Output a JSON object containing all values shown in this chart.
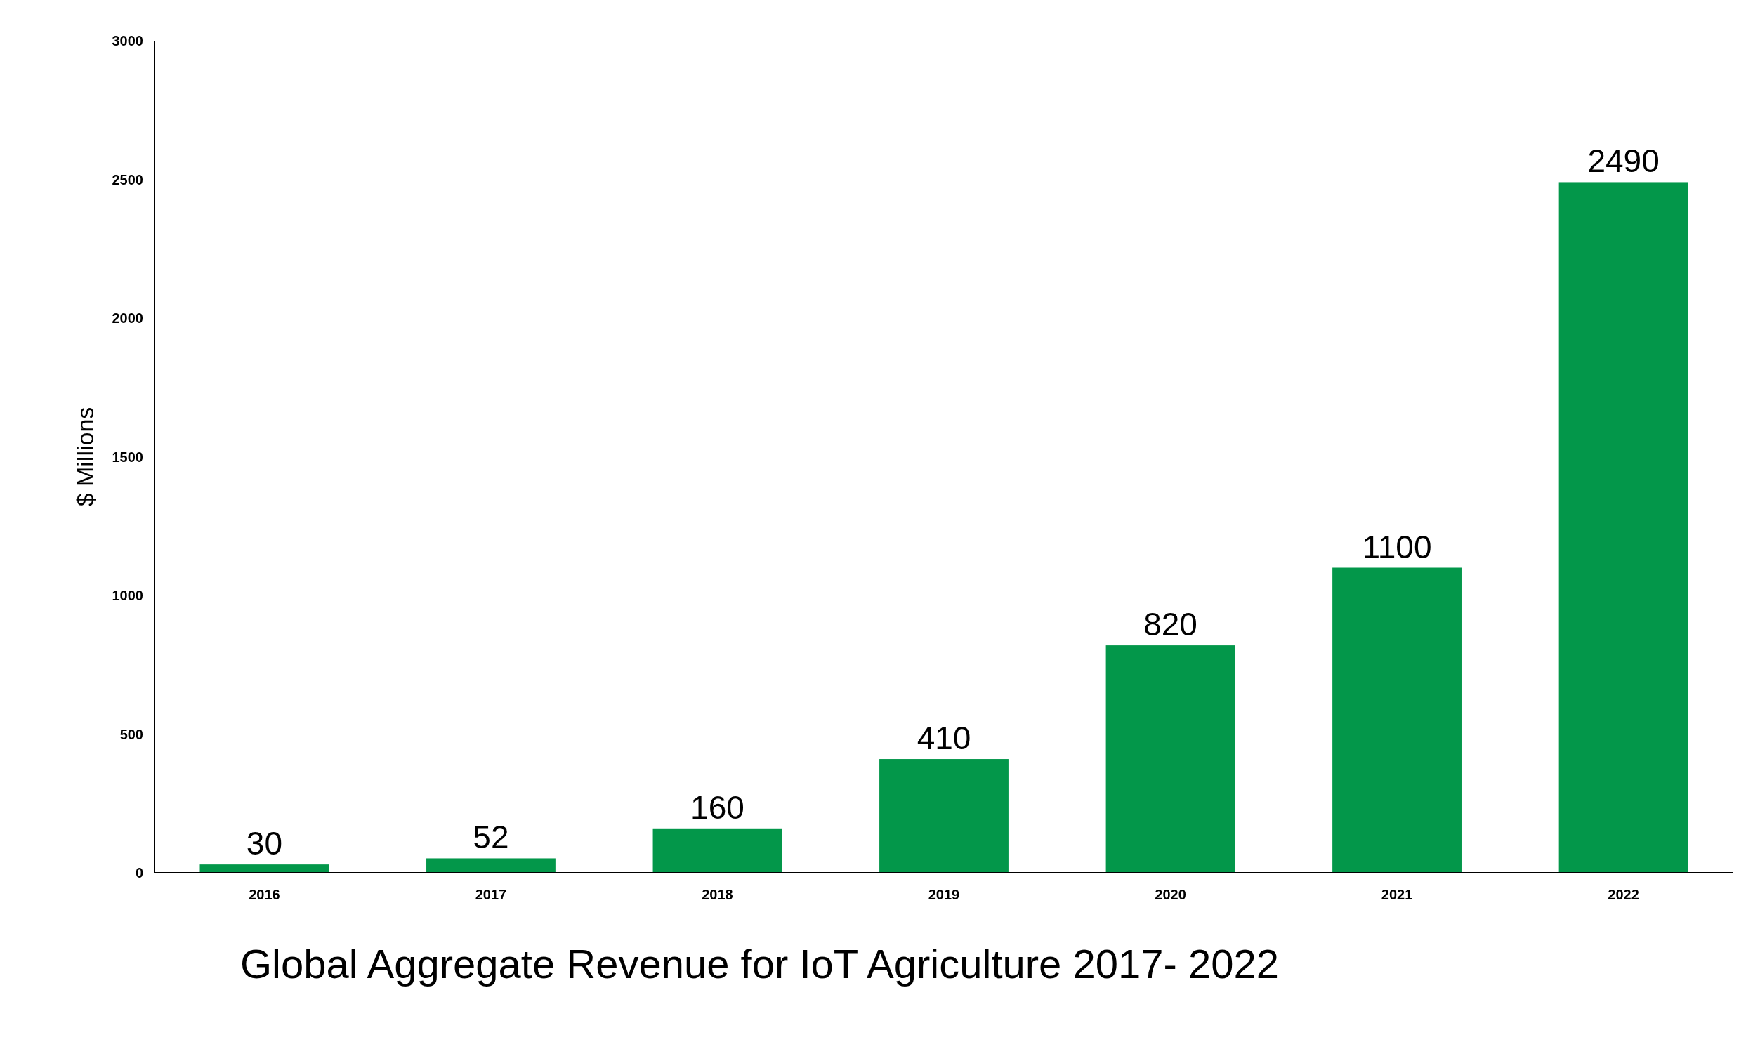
{
  "chart_data": {
    "type": "bar",
    "title": "Global Aggregate Revenue for IoT Agriculture 2017- 2022",
    "ylabel": "$ Millions",
    "categories": [
      "2016",
      "2017",
      "2018",
      "2019",
      "2020",
      "2021",
      "2022"
    ],
    "values": [
      30,
      52,
      160,
      410,
      820,
      1100,
      2490
    ],
    "color": "#03974a",
    "ylim": [
      0,
      3000
    ],
    "yticks": [
      0,
      500,
      1000,
      1500,
      2000,
      2500,
      3000
    ],
    "grid": false,
    "data_labels": true
  }
}
